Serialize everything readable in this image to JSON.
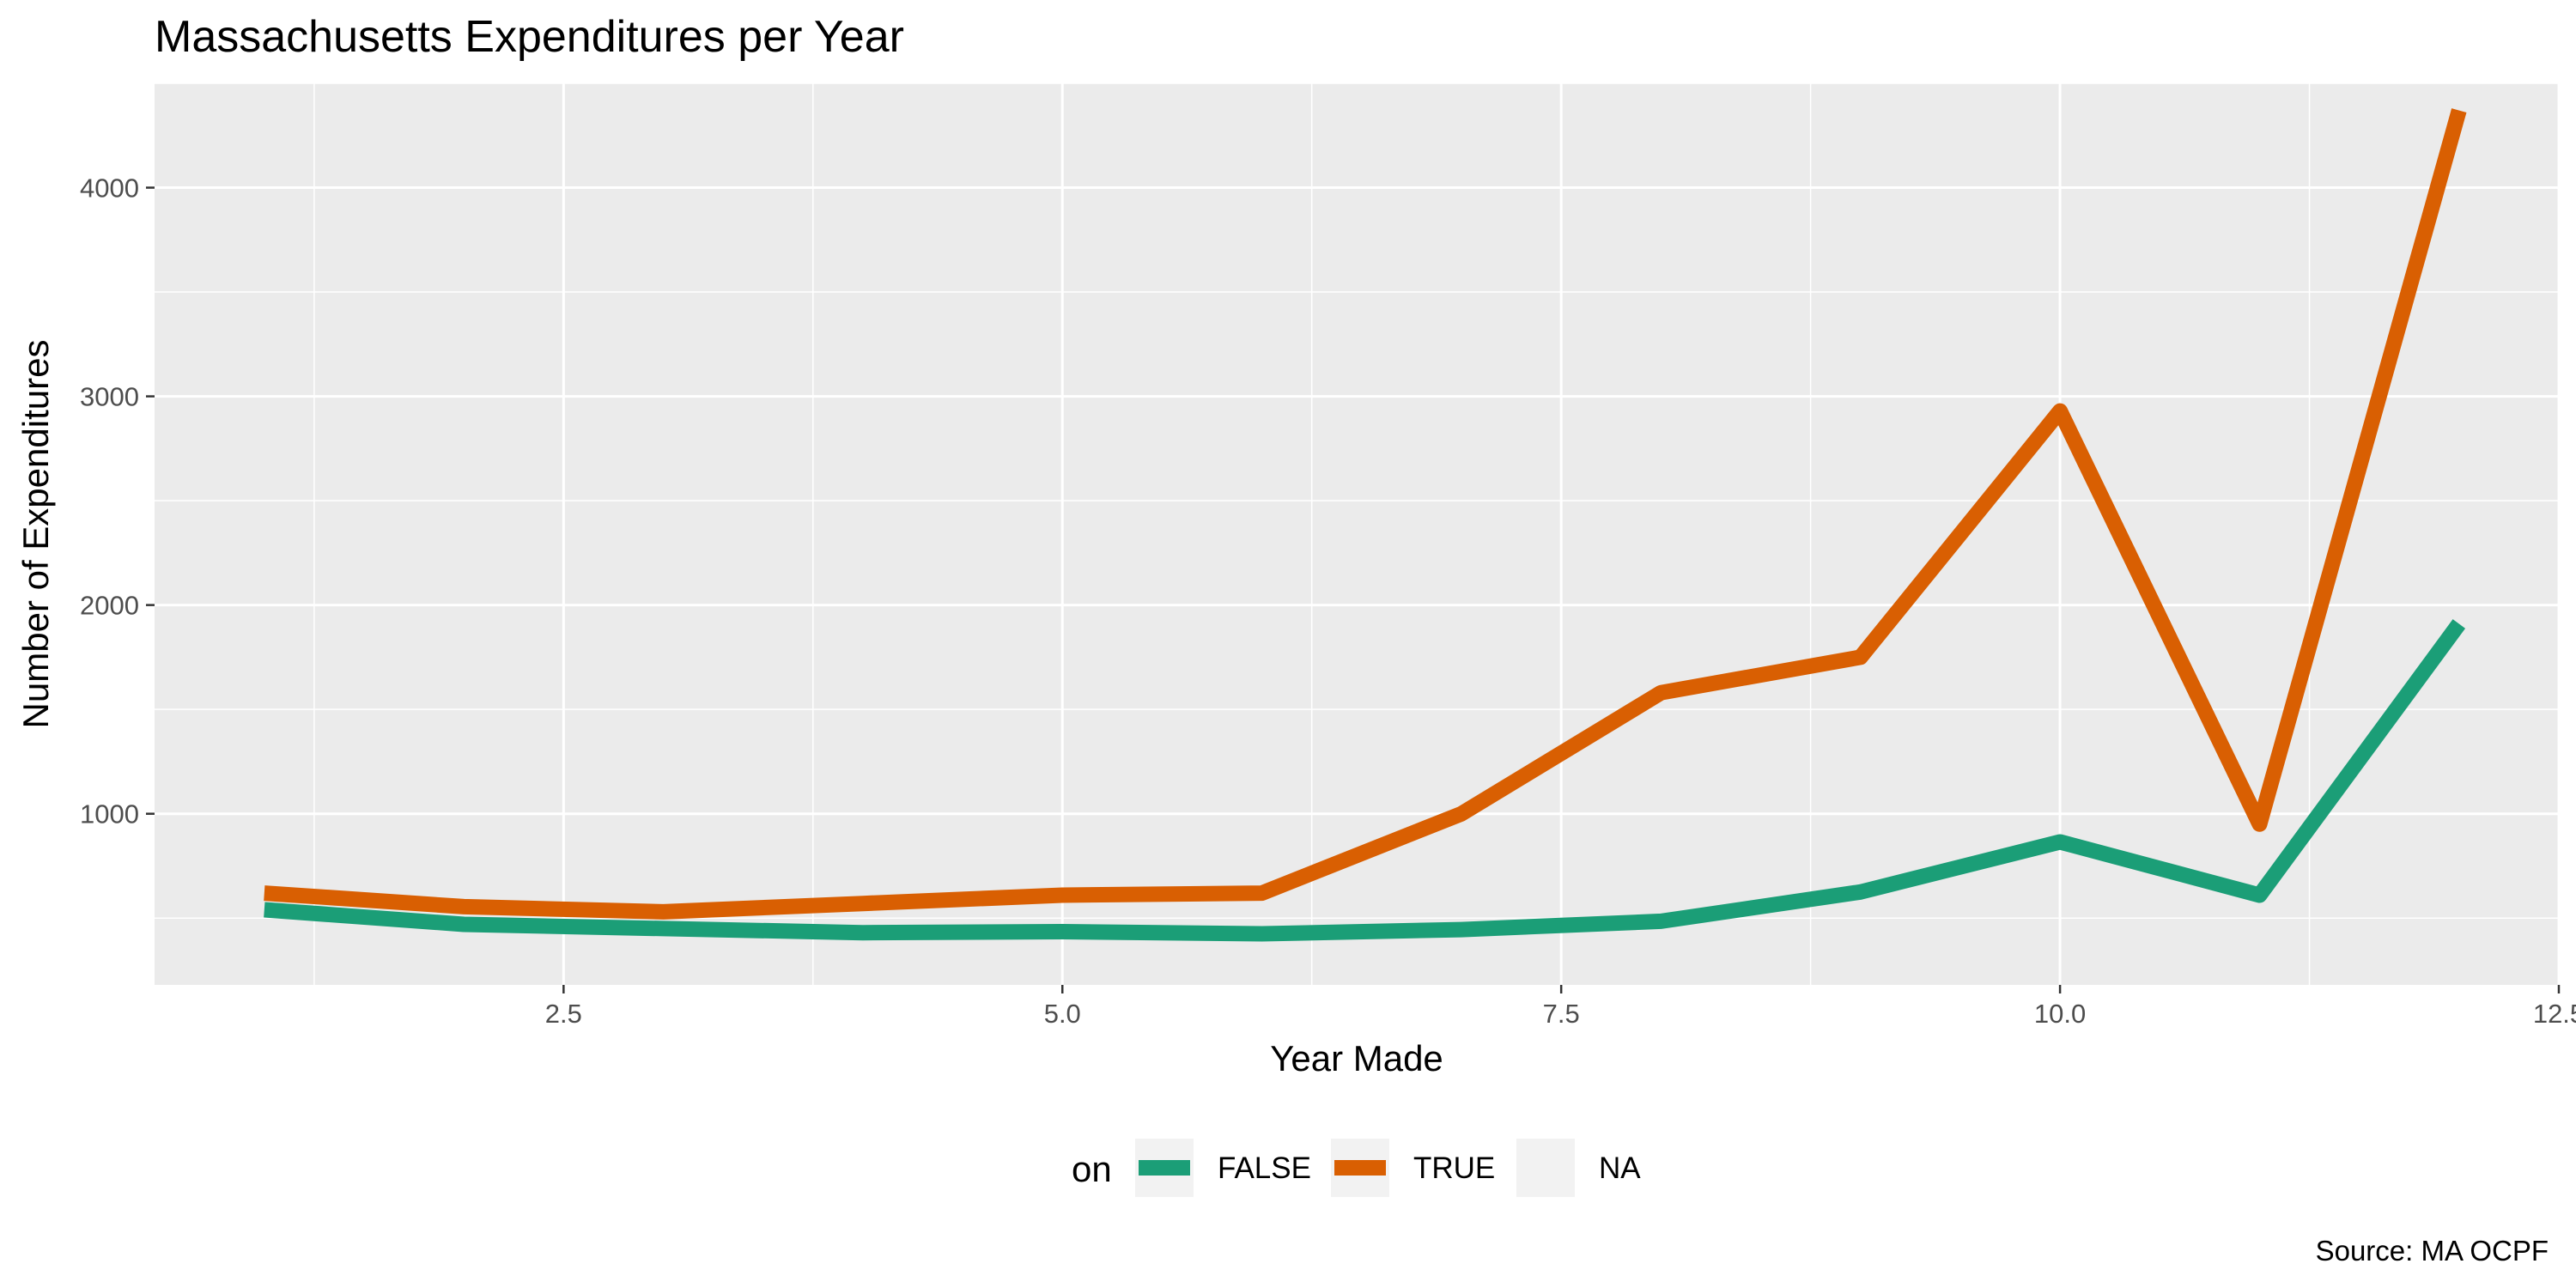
{
  "chart_data": {
    "type": "line",
    "title": "Massachusetts Expenditures per Year",
    "xlabel": "Year Made",
    "ylabel": "Number of Expenditures",
    "caption": "Source: MA OCPF",
    "x": [
      1,
      2,
      3,
      4,
      5,
      6,
      7,
      8,
      9,
      10,
      11,
      12
    ],
    "xlim": [
      0.45,
      12.5
    ],
    "ylim": [
      180,
      4500
    ],
    "x_ticks": [
      2.5,
      5.0,
      7.5,
      10.0,
      12.5
    ],
    "x_tick_labels": [
      "2.5",
      "5.0",
      "7.5",
      "10.0",
      "12.5"
    ],
    "y_ticks": [
      1000,
      2000,
      3000,
      4000
    ],
    "y_tick_labels": [
      "1000",
      "2000",
      "3000",
      "4000"
    ],
    "grid": true,
    "legend_position": "bottom",
    "legend_title": "on",
    "series": [
      {
        "name": "FALSE",
        "color": "#1b9e77",
        "values": [
          540,
          470,
          450,
          430,
          435,
          425,
          445,
          485,
          625,
          865,
          610,
          1910
        ]
      },
      {
        "name": "TRUE",
        "color": "#d95f02",
        "values": [
          620,
          555,
          530,
          570,
          610,
          620,
          1000,
          1580,
          1750,
          2930,
          950,
          4370
        ]
      }
    ],
    "legend": [
      {
        "name": "FALSE",
        "color": "#1b9e77"
      },
      {
        "name": "TRUE",
        "color": "#d95f02"
      },
      {
        "name": "NA",
        "color": null
      }
    ]
  }
}
